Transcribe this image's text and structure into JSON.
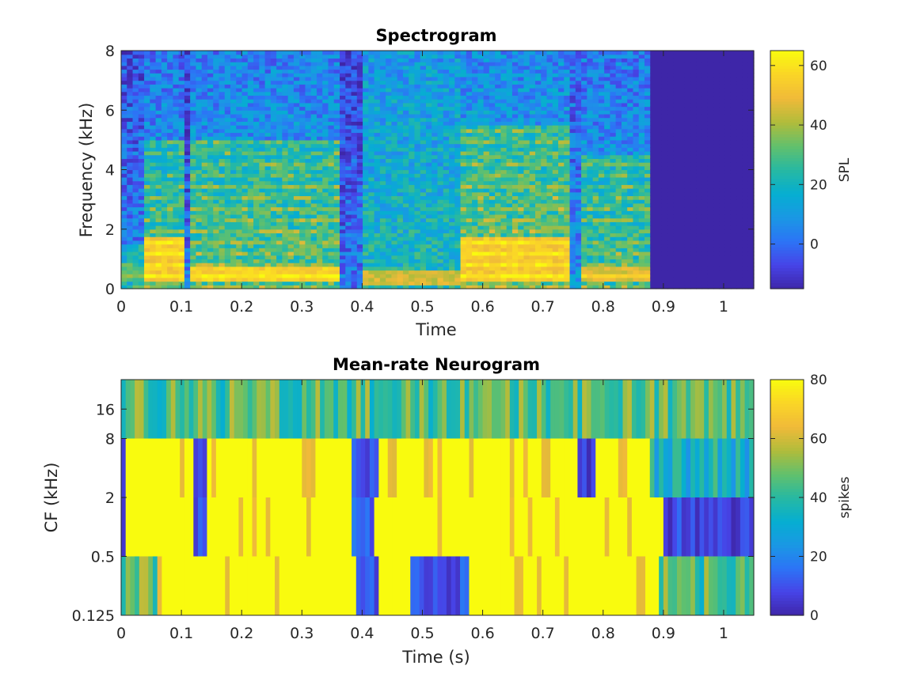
{
  "chart_data": [
    {
      "type": "heatmap",
      "title": "Spectrogram",
      "xlabel": "Time",
      "ylabel": "Frequency (kHz)",
      "xlim": [
        0,
        1.05
      ],
      "ylim": [
        0,
        8
      ],
      "x_ticks": [
        "0",
        "0.1",
        "0.2",
        "0.3",
        "0.4",
        "0.5",
        "0.6",
        "0.7",
        "0.8",
        "0.9",
        "1"
      ],
      "x_tick_values": [
        0,
        0.1,
        0.2,
        0.3,
        0.4,
        0.5,
        0.6,
        0.7,
        0.8,
        0.9,
        1.0
      ],
      "y_ticks": [
        "0",
        "2",
        "4",
        "6",
        "8"
      ],
      "y_tick_values": [
        0,
        2,
        4,
        6,
        8
      ],
      "colorbar": {
        "label": "SPL",
        "range": [
          -15,
          65
        ],
        "ticks": [
          "0",
          "20",
          "40",
          "60"
        ],
        "tick_values": [
          0,
          20,
          40,
          60
        ]
      },
      "colormap": "parula",
      "signal_end_time": 0.88,
      "silence_value": -15,
      "segments": [
        {
          "t": [
            0.0,
            0.04
          ],
          "level": 20,
          "f_top": 1.5,
          "low_band_kHz": [
            0.2,
            0.8
          ],
          "low_band_level": 35
        },
        {
          "t": [
            0.04,
            0.105
          ],
          "level": 28,
          "f_top": 5.0,
          "low_band_kHz": [
            0.3,
            1.8
          ],
          "low_band_level": 58
        },
        {
          "t": [
            0.105,
            0.115
          ],
          "level": 2,
          "f_top": 8.0,
          "low_band_kHz": [
            0.0,
            0.0
          ],
          "low_band_level": 0
        },
        {
          "t": [
            0.115,
            0.36
          ],
          "level": 30,
          "f_top": 5.0,
          "low_band_kHz": [
            0.2,
            0.8
          ],
          "low_band_level": 60
        },
        {
          "t": [
            0.36,
            0.4
          ],
          "level": 2,
          "f_top": 8.0,
          "low_band_kHz": [
            0.0,
            0.0
          ],
          "low_band_level": 0
        },
        {
          "t": [
            0.4,
            0.56
          ],
          "level": 22,
          "f_top": 8.0,
          "low_band_kHz": [
            0.1,
            0.6
          ],
          "low_band_level": 50
        },
        {
          "t": [
            0.56,
            0.74
          ],
          "level": 32,
          "f_top": 5.5,
          "low_band_kHz": [
            0.3,
            1.8
          ],
          "low_band_level": 58
        },
        {
          "t": [
            0.74,
            0.76
          ],
          "level": 8,
          "f_top": 8.0,
          "low_band_kHz": [
            0.0,
            0.0
          ],
          "low_band_level": 0
        },
        {
          "t": [
            0.76,
            0.88
          ],
          "level": 28,
          "f_top": 4.5,
          "low_band_kHz": [
            0.2,
            0.8
          ],
          "low_band_level": 52
        }
      ]
    },
    {
      "type": "heatmap",
      "title": "Mean-rate Neurogram",
      "xlabel": "Time (s)",
      "ylabel": "CF (kHz)",
      "xlim": [
        0,
        1.05
      ],
      "x_ticks": [
        "0",
        "0.1",
        "0.2",
        "0.3",
        "0.4",
        "0.5",
        "0.6",
        "0.7",
        "0.8",
        "0.9",
        "1"
      ],
      "x_tick_values": [
        0,
        0.1,
        0.2,
        0.3,
        0.4,
        0.5,
        0.6,
        0.7,
        0.8,
        0.9,
        1.0
      ],
      "y_ticks": [
        "0.125",
        "0.5",
        "2",
        "8",
        "16"
      ],
      "y_scale": "log2",
      "colorbar": {
        "label": "spikes",
        "range": [
          0,
          80
        ],
        "ticks": [
          "0",
          "20",
          "40",
          "60",
          "80"
        ],
        "tick_values": [
          0,
          20,
          40,
          60,
          80
        ]
      },
      "colormap": "parula",
      "bands": [
        {
          "cf_range_kHz": [
            0.125,
            0.5
          ],
          "segments": [
            {
              "t": [
                0.0,
                0.06
              ],
              "value": 45
            },
            {
              "t": [
                0.06,
                0.39
              ],
              "value": 80
            },
            {
              "t": [
                0.39,
                0.43
              ],
              "value": 10
            },
            {
              "t": [
                0.43,
                0.48
              ],
              "value": 80
            },
            {
              "t": [
                0.48,
                0.58
              ],
              "value": 10
            },
            {
              "t": [
                0.58,
                0.77
              ],
              "value": 80
            },
            {
              "t": [
                0.77,
                0.89
              ],
              "value": 75
            },
            {
              "t": [
                0.89,
                1.05
              ],
              "value": 45
            }
          ]
        },
        {
          "cf_range_kHz": [
            0.5,
            2
          ],
          "segments": [
            {
              "t": [
                0.0,
                0.01
              ],
              "value": 10
            },
            {
              "t": [
                0.01,
                0.12
              ],
              "value": 80
            },
            {
              "t": [
                0.12,
                0.14
              ],
              "value": 10
            },
            {
              "t": [
                0.14,
                0.38
              ],
              "value": 80
            },
            {
              "t": [
                0.38,
                0.42
              ],
              "value": 12
            },
            {
              "t": [
                0.42,
                0.77
              ],
              "value": 80
            },
            {
              "t": [
                0.77,
                0.9
              ],
              "value": 78
            },
            {
              "t": [
                0.9,
                1.05
              ],
              "value": 8
            }
          ]
        },
        {
          "cf_range_kHz": [
            2,
            8
          ],
          "segments": [
            {
              "t": [
                0.0,
                0.01
              ],
              "value": 10
            },
            {
              "t": [
                0.01,
                0.12
              ],
              "value": 80
            },
            {
              "t": [
                0.12,
                0.14
              ],
              "value": 10
            },
            {
              "t": [
                0.14,
                0.38
              ],
              "value": 80
            },
            {
              "t": [
                0.38,
                0.43
              ],
              "value": 8
            },
            {
              "t": [
                0.43,
                0.76
              ],
              "value": 80
            },
            {
              "t": [
                0.76,
                0.79
              ],
              "value": 8
            },
            {
              "t": [
                0.79,
                0.88
              ],
              "value": 78
            },
            {
              "t": [
                0.88,
                1.05
              ],
              "value": 35
            }
          ]
        },
        {
          "cf_range_kHz": [
            8,
            32
          ],
          "segments": [
            {
              "t": [
                0.0,
                1.05
              ],
              "value": 45
            }
          ]
        }
      ]
    }
  ]
}
